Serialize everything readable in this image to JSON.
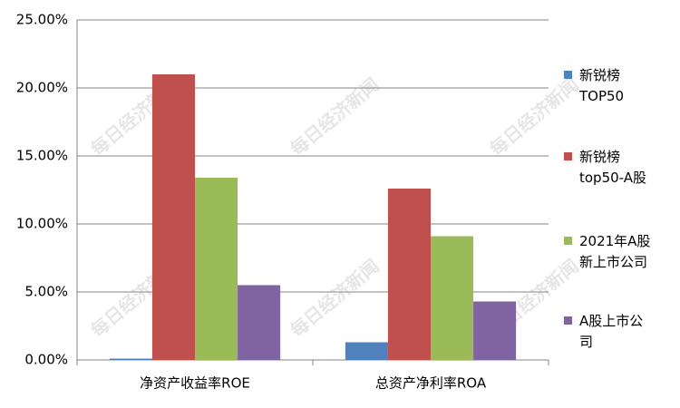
{
  "chart_data": {
    "type": "bar",
    "categories": [
      "净资产收益率ROE",
      "总资产净利率ROA"
    ],
    "series": [
      {
        "name": "新锐榜TOP50",
        "color": "#4f81bd",
        "values": [
          0.1,
          1.3
        ]
      },
      {
        "name": "新锐榜top50-A股",
        "color": "#c0504d",
        "values": [
          21.0,
          12.6
        ]
      },
      {
        "name": "2021年A股新上市公司",
        "color": "#9bbb59",
        "values": [
          13.4,
          9.1
        ]
      },
      {
        "name": "A股上市公司",
        "color": "#8064a2",
        "values": [
          5.5,
          4.3
        ]
      }
    ],
    "ylim": [
      0,
      25
    ],
    "yticks": [
      {
        "value": 0,
        "label": "0.00%"
      },
      {
        "value": 5,
        "label": "5.00%"
      },
      {
        "value": 10,
        "label": "10.00%"
      },
      {
        "value": 15,
        "label": "15.00%"
      },
      {
        "value": 20,
        "label": "20.00%"
      },
      {
        "value": 25,
        "label": "25.00%"
      }
    ],
    "grid": true,
    "legend": "right",
    "watermark": "每日经济新闻"
  }
}
